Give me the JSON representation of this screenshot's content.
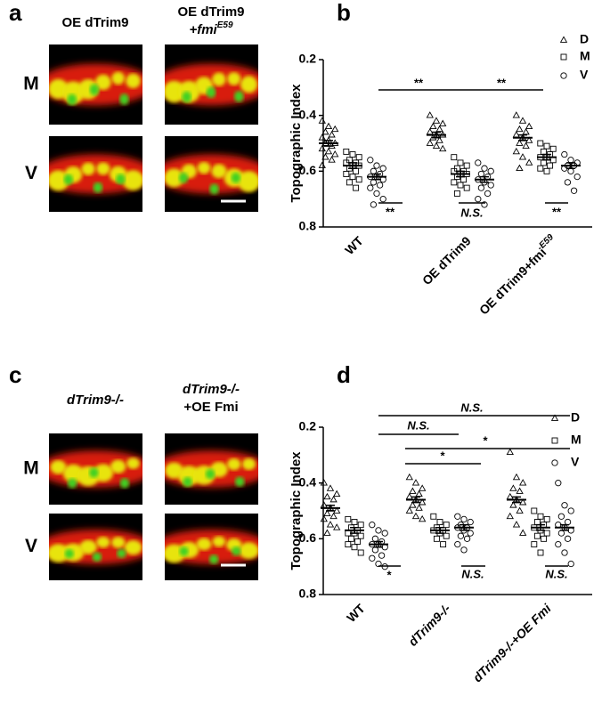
{
  "panels": [
    {
      "letter": "a",
      "columns": [
        {
          "lines": [
            "OE dTrim9"
          ]
        },
        {
          "lines": [
            "OE dTrim9",
            "+fmi"
          ],
          "sup": "E59"
        }
      ],
      "rows": [
        "M",
        "V"
      ]
    },
    {
      "letter": "b"
    },
    {
      "letter": "c",
      "columns": [
        {
          "lines": [
            "dTrim9-/-"
          ]
        },
        {
          "lines": [
            "dTrim9-/-",
            "+OE Fmi"
          ]
        }
      ],
      "rows": [
        "M",
        "V"
      ]
    },
    {
      "letter": "d"
    }
  ],
  "chart_data": [
    {
      "type": "strip",
      "y_label": "Topographic Index",
      "categories": [
        "WT",
        "OE dTrim9",
        "OE dTrim9+fmi"
      ],
      "x_label_superscripts": [
        null,
        null,
        "E59"
      ],
      "ylim": [
        0.8,
        0.2
      ],
      "yticks": [
        0.2,
        0.4,
        0.6,
        0.8
      ],
      "series": [
        {
          "name": "D",
          "marker": "triangle",
          "color": "#000000",
          "values": [
            [
              0.42,
              0.44,
              0.45,
              0.46,
              0.47,
              0.48,
              0.49,
              0.5,
              0.5,
              0.51,
              0.52,
              0.53,
              0.54,
              0.55,
              0.56,
              0.58
            ],
            [
              0.4,
              0.42,
              0.43,
              0.44,
              0.45,
              0.46,
              0.47,
              0.47,
              0.48,
              0.49,
              0.5,
              0.51,
              0.52
            ],
            [
              0.4,
              0.42,
              0.44,
              0.45,
              0.46,
              0.47,
              0.48,
              0.49,
              0.5,
              0.51,
              0.53,
              0.55,
              0.57,
              0.59
            ]
          ],
          "means": [
            0.5,
            0.47,
            0.48
          ],
          "errors": [
            0.01,
            0.01,
            0.01
          ]
        },
        {
          "name": "M",
          "marker": "square",
          "color": "#000000",
          "values": [
            [
              0.53,
              0.54,
              0.55,
              0.56,
              0.57,
              0.57,
              0.58,
              0.58,
              0.59,
              0.6,
              0.61,
              0.62,
              0.63,
              0.64,
              0.66
            ],
            [
              0.55,
              0.57,
              0.58,
              0.59,
              0.6,
              0.6,
              0.61,
              0.61,
              0.62,
              0.63,
              0.64,
              0.65,
              0.66,
              0.68
            ],
            [
              0.5,
              0.51,
              0.52,
              0.53,
              0.54,
              0.55,
              0.55,
              0.56,
              0.57,
              0.58,
              0.59,
              0.6
            ]
          ],
          "means": [
            0.58,
            0.61,
            0.55
          ],
          "errors": [
            0.01,
            0.01,
            0.01
          ]
        },
        {
          "name": "V",
          "marker": "circle",
          "color": "#000000",
          "values": [
            [
              0.56,
              0.58,
              0.59,
              0.6,
              0.61,
              0.62,
              0.62,
              0.63,
              0.64,
              0.65,
              0.66,
              0.68,
              0.7,
              0.72
            ],
            [
              0.57,
              0.59,
              0.6,
              0.61,
              0.62,
              0.63,
              0.64,
              0.65,
              0.66,
              0.68,
              0.7,
              0.72
            ],
            [
              0.54,
              0.56,
              0.57,
              0.58,
              0.58,
              0.59,
              0.6,
              0.62,
              0.64,
              0.67
            ]
          ],
          "means": [
            0.62,
            0.63,
            0.58
          ],
          "errors": [
            0.01,
            0.01,
            0.01
          ]
        }
      ],
      "annotations": [
        "**",
        "**",
        "**",
        "N.S.",
        "**"
      ]
    },
    {
      "type": "strip",
      "y_label": "Topographic Index",
      "categories": [
        "WT",
        "dTrim9-/-",
        "dTrim9-/-+OE Fmi"
      ],
      "ylim": [
        0.8,
        0.2
      ],
      "yticks": [
        0.2,
        0.4,
        0.6,
        0.8
      ],
      "series": [
        {
          "name": "D",
          "marker": "triangle",
          "color": "#000000",
          "values": [
            [
              0.4,
              0.42,
              0.44,
              0.45,
              0.46,
              0.48,
              0.49,
              0.5,
              0.51,
              0.52,
              0.53,
              0.55,
              0.56,
              0.58
            ],
            [
              0.38,
              0.4,
              0.42,
              0.43,
              0.44,
              0.45,
              0.46,
              0.47,
              0.48,
              0.49,
              0.5,
              0.52,
              0.53
            ],
            [
              0.29,
              0.38,
              0.4,
              0.42,
              0.43,
              0.45,
              0.46,
              0.47,
              0.48,
              0.5,
              0.52,
              0.55,
              0.58
            ]
          ],
          "means": [
            0.49,
            0.46,
            0.46
          ],
          "errors": [
            0.01,
            0.01,
            0.01
          ]
        },
        {
          "name": "M",
          "marker": "square",
          "color": "#000000",
          "values": [
            [
              0.53,
              0.54,
              0.55,
              0.56,
              0.57,
              0.58,
              0.58,
              0.59,
              0.6,
              0.61,
              0.62,
              0.63,
              0.65
            ],
            [
              0.52,
              0.54,
              0.55,
              0.56,
              0.57,
              0.57,
              0.58,
              0.59,
              0.6,
              0.62
            ],
            [
              0.5,
              0.52,
              0.53,
              0.54,
              0.55,
              0.56,
              0.57,
              0.58,
              0.59,
              0.6,
              0.62,
              0.65
            ]
          ],
          "means": [
            0.57,
            0.57,
            0.56
          ],
          "errors": [
            0.01,
            0.01,
            0.01
          ]
        },
        {
          "name": "V",
          "marker": "circle",
          "color": "#000000",
          "values": [
            [
              0.55,
              0.57,
              0.58,
              0.6,
              0.61,
              0.62,
              0.62,
              0.63,
              0.64,
              0.66,
              0.67,
              0.69,
              0.7
            ],
            [
              0.52,
              0.53,
              0.54,
              0.55,
              0.56,
              0.56,
              0.57,
              0.58,
              0.59,
              0.6,
              0.62,
              0.64
            ],
            [
              0.4,
              0.48,
              0.5,
              0.52,
              0.54,
              0.55,
              0.56,
              0.57,
              0.58,
              0.6,
              0.62,
              0.65,
              0.69
            ]
          ],
          "means": [
            0.62,
            0.56,
            0.56
          ],
          "errors": [
            0.01,
            0.01,
            0.01
          ]
        }
      ],
      "annotations": [
        "N.S.",
        "N.S.",
        "*",
        "*",
        "*",
        "N.S.",
        "N.S."
      ]
    }
  ]
}
